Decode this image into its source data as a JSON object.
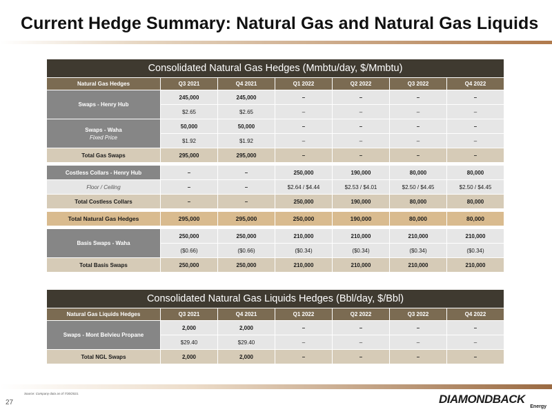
{
  "title": "Current Hedge Summary: Natural Gas and Natural Gas Liquids",
  "gas": {
    "title": "Consolidated Natural Gas Hedges (Mmbtu/day, $/Mmbtu)",
    "header": [
      "Natural Gas Hedges",
      "Q3 2021",
      "Q4 2021",
      "Q1 2022",
      "Q2 2022",
      "Q3 2022",
      "Q4 2022"
    ],
    "henry_hub": {
      "label": "Swaps - Henry Hub",
      "volume": [
        "245,000",
        "245,000",
        "–",
        "–",
        "–",
        "–"
      ],
      "price": [
        "$2.65",
        "$2.65",
        "–",
        "–",
        "–",
        "–"
      ]
    },
    "waha": {
      "label": "Swaps - Waha",
      "sublabel": "Fixed Price",
      "volume": [
        "50,000",
        "50,000",
        "–",
        "–",
        "–",
        "–"
      ],
      "price": [
        "$1.92",
        "$1.92",
        "–",
        "–",
        "–",
        "–"
      ]
    },
    "total_swaps": {
      "label": "Total Gas Swaps",
      "values": [
        "295,000",
        "295,000",
        "–",
        "–",
        "–",
        "–"
      ]
    },
    "collars": {
      "label": "Costless Collars - Henry Hub",
      "volume": [
        "–",
        "–",
        "250,000",
        "190,000",
        "80,000",
        "80,000"
      ],
      "floor_label": "Floor / Ceiling",
      "floor": [
        "–",
        "–",
        "$2.64 / $4.44",
        "$2.53 / $4.01",
        "$2.50 / $4.45",
        "$2.50 / $4.45"
      ]
    },
    "total_collars": {
      "label": "Total Costless Collars",
      "values": [
        "–",
        "–",
        "250,000",
        "190,000",
        "80,000",
        "80,000"
      ]
    },
    "total_hedges": {
      "label": "Total Natural Gas Hedges",
      "values": [
        "295,000",
        "295,000",
        "250,000",
        "190,000",
        "80,000",
        "80,000"
      ]
    },
    "basis": {
      "label": "Basis Swaps - Waha",
      "volume": [
        "250,000",
        "250,000",
        "210,000",
        "210,000",
        "210,000",
        "210,000"
      ],
      "price": [
        "($0.66)",
        "($0.66)",
        "($0.34)",
        "($0.34)",
        "($0.34)",
        "($0.34)"
      ]
    },
    "total_basis": {
      "label": "Total Basis Swaps",
      "values": [
        "250,000",
        "250,000",
        "210,000",
        "210,000",
        "210,000",
        "210,000"
      ]
    }
  },
  "ngl": {
    "title": "Consolidated Natural Gas Liquids Hedges (Bbl/day, $/Bbl)",
    "header": [
      "Natural Gas Liquids Hedges",
      "Q3 2021",
      "Q4 2021",
      "Q1 2022",
      "Q2 2022",
      "Q3 2022",
      "Q4 2022"
    ],
    "mont_belvieu": {
      "label": "Swaps - Mont Belvieu Propane",
      "volume": [
        "2,000",
        "2,000",
        "–",
        "–",
        "–",
        "–"
      ],
      "price": [
        "$29.40",
        "$29.40",
        "–",
        "–",
        "–",
        "–"
      ]
    },
    "total": {
      "label": "Total NGL Swaps",
      "values": [
        "2,000",
        "2,000",
        "–",
        "–",
        "–",
        "–"
      ]
    }
  },
  "footnote": "Source: Company data as of 7/30/2021.",
  "page_number": "27",
  "logo": {
    "name": "DIAMONDBACK",
    "sub": "Energy"
  },
  "colors": {
    "dark_bar": "#3f3a30",
    "header_brown": "#7b6b52",
    "label_gray": "#868686",
    "cell_gray": "#e6e6e6",
    "total_tan": "#d6cbb7",
    "grand_total_tan": "#d9bb8f"
  }
}
